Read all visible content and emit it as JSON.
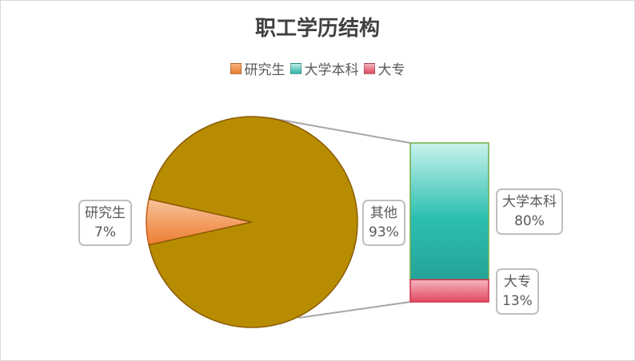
{
  "chart_data": {
    "type": "pie",
    "title": "职工学历结构",
    "subtype": "bar-of-pie",
    "legend_position": "top",
    "legend": [
      {
        "label": "研究生",
        "color": "#ed7d31"
      },
      {
        "label": "大学本科",
        "color": "#2bb5a8"
      },
      {
        "label": "大专",
        "color": "#e0485e"
      }
    ],
    "pie": {
      "slices": [
        {
          "label": "研究生",
          "value": 7,
          "value_label": "7%",
          "color": "#ed7d31"
        },
        {
          "label": "其他",
          "value": 93,
          "value_label": "93%",
          "color": "#b78c00"
        }
      ]
    },
    "bar": {
      "segments": [
        {
          "label": "大学本科",
          "value": 80,
          "value_label": "80%",
          "color": "#2bb5a8"
        },
        {
          "label": "大专",
          "value": 13,
          "value_label": "13%",
          "color": "#e0485e"
        }
      ]
    }
  }
}
